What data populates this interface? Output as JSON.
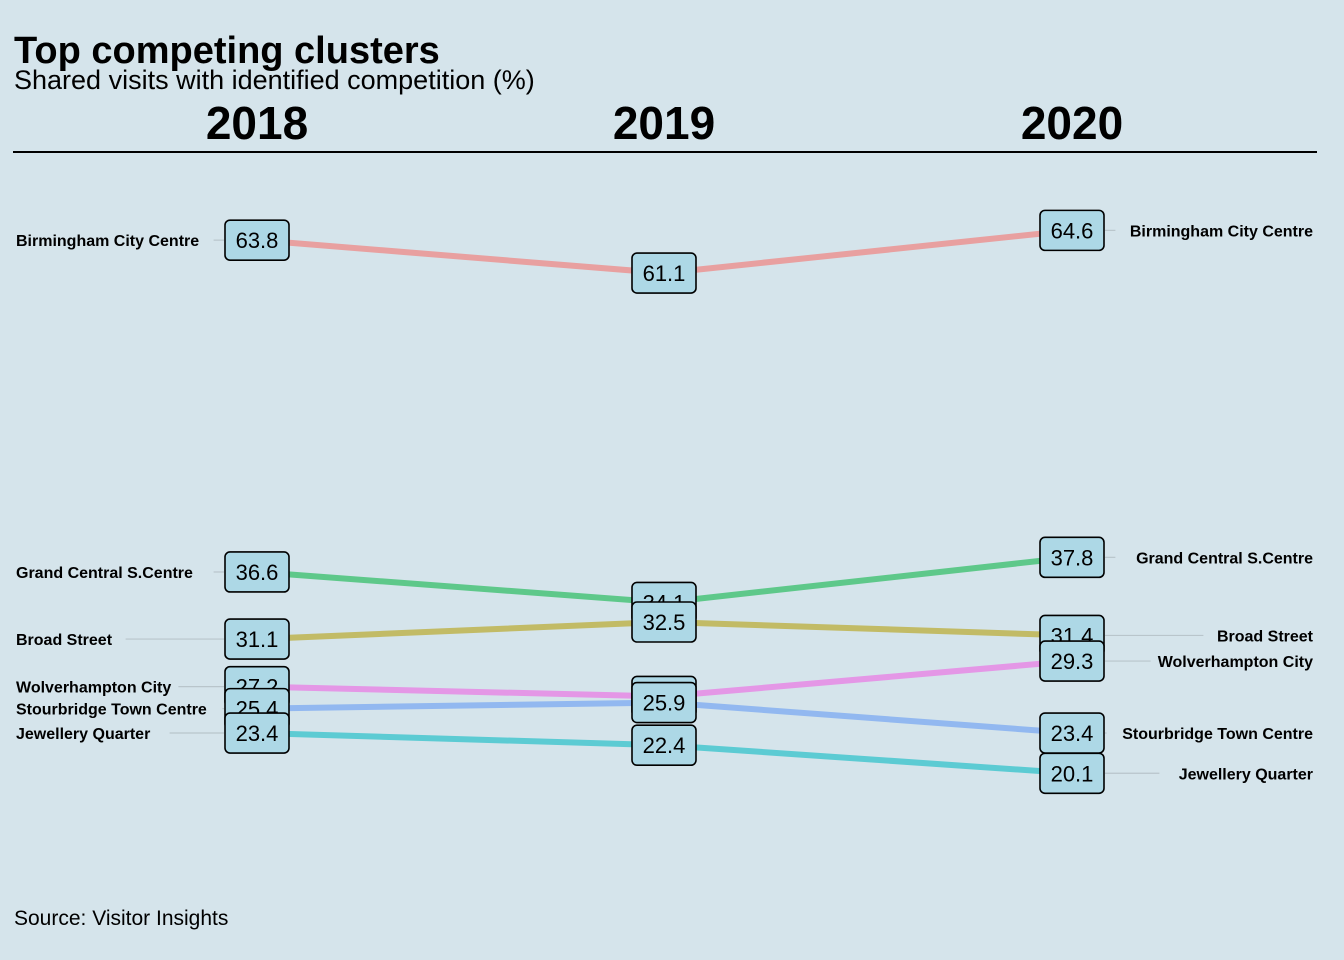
{
  "title": "Top competing clusters",
  "subtitle": "Shared visits with identified competition (%)",
  "caption": "Source: Visitor Insights",
  "colors": {
    "background": "#d5e4eb",
    "label_box": "#add8e6",
    "Birmingham City Centre": "#e8a0a0",
    "Grand Central S.Centre": "#5ec88a",
    "Broad Street": "#c2bb66",
    "Wolverhampton City": "#e497e6",
    "Stourbridge Town Centre": "#92b8f0",
    "Jewellery Quarter": "#5ccbd3"
  },
  "chart_data": {
    "type": "line",
    "style": "slopegraph",
    "x": [
      "2018",
      "2019",
      "2020"
    ],
    "ylim": [
      20.1,
      64.6
    ],
    "grid": false,
    "legend": "none",
    "series": [
      {
        "name": "Birmingham City Centre",
        "values": [
          63.8,
          61.1,
          64.6
        ]
      },
      {
        "name": "Grand Central S.Centre",
        "values": [
          36.6,
          34.1,
          37.8
        ]
      },
      {
        "name": "Broad Street",
        "values": [
          31.1,
          32.5,
          31.4
        ]
      },
      {
        "name": "Wolverhampton City",
        "values": [
          27.2,
          26.4,
          29.3
        ]
      },
      {
        "name": "Stourbridge Town Centre",
        "values": [
          25.4,
          25.9,
          23.4
        ]
      },
      {
        "name": "Jewellery Quarter",
        "values": [
          23.4,
          22.4,
          20.1
        ]
      }
    ]
  }
}
